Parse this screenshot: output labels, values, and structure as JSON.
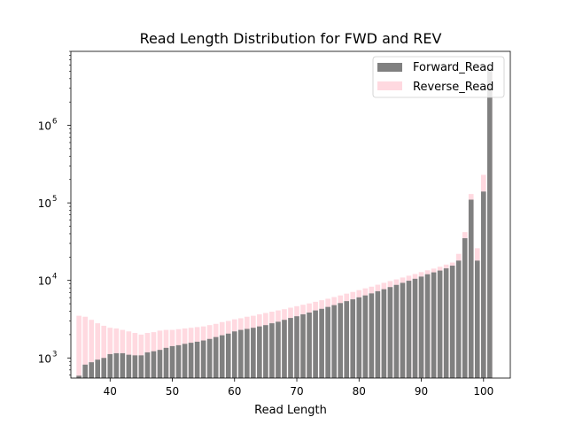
{
  "chart_data": {
    "type": "bar",
    "title": "Read Length Distribution for FWD and REV",
    "xlabel": "Read Length",
    "ylabel": "",
    "xlim": [
      33.7,
      104.3
    ],
    "ylim": [
      550,
      9000000
    ],
    "yscale": "log",
    "grid": false,
    "legend_position": "top-right",
    "x_ticks": [
      40,
      50,
      60,
      70,
      80,
      90,
      100
    ],
    "y_ticks": [
      {
        "value": 1000,
        "base": "10",
        "exp": "3"
      },
      {
        "value": 10000,
        "base": "10",
        "exp": "4"
      },
      {
        "value": 100000,
        "base": "10",
        "exp": "5"
      },
      {
        "value": 1000000,
        "base": "10",
        "exp": "6"
      }
    ],
    "x": [
      35,
      36,
      37,
      38,
      39,
      40,
      41,
      42,
      43,
      44,
      45,
      46,
      47,
      48,
      49,
      50,
      51,
      52,
      53,
      54,
      55,
      56,
      57,
      58,
      59,
      60,
      61,
      62,
      63,
      64,
      65,
      66,
      67,
      68,
      69,
      70,
      71,
      72,
      73,
      74,
      75,
      76,
      77,
      78,
      79,
      80,
      81,
      82,
      83,
      84,
      85,
      86,
      87,
      88,
      89,
      90,
      91,
      92,
      93,
      94,
      95,
      96,
      97,
      98,
      99,
      100,
      101
    ],
    "series": [
      {
        "name": "Forward_Read",
        "color": "#808080",
        "alpha": 1.0,
        "values": [
          590,
          820,
          880,
          950,
          1000,
          1120,
          1150,
          1150,
          1100,
          1080,
          1080,
          1180,
          1220,
          1270,
          1350,
          1420,
          1460,
          1520,
          1570,
          1620,
          1680,
          1760,
          1860,
          1960,
          2060,
          2200,
          2300,
          2370,
          2450,
          2550,
          2650,
          2800,
          2930,
          3100,
          3280,
          3450,
          3650,
          3850,
          4100,
          4300,
          4550,
          4800,
          5100,
          5400,
          5700,
          6050,
          6400,
          6800,
          7250,
          7700,
          8200,
          8750,
          9300,
          9900,
          10500,
          11200,
          12000,
          12700,
          13400,
          14300,
          15500,
          18000,
          35000,
          110000,
          18000,
          140000,
          5500000
        ]
      },
      {
        "name": "Reverse_Read",
        "color": "#ffc0cb",
        "alpha": 0.6,
        "values": [
          3500,
          3400,
          3100,
          2800,
          2600,
          2450,
          2400,
          2300,
          2200,
          2100,
          2000,
          2100,
          2150,
          2250,
          2300,
          2300,
          2350,
          2400,
          2450,
          2500,
          2550,
          2650,
          2750,
          2900,
          3000,
          3150,
          3250,
          3400,
          3500,
          3650,
          3800,
          3950,
          4100,
          4250,
          4450,
          4650,
          4850,
          5050,
          5300,
          5550,
          5800,
          6100,
          6400,
          6750,
          7100,
          7500,
          7900,
          8300,
          8800,
          9300,
          9800,
          10300,
          10900,
          11500,
          12100,
          12800,
          13500,
          14200,
          15000,
          16000,
          17000,
          22000,
          42000,
          130000,
          26000,
          230000,
          4800000
        ]
      }
    ]
  }
}
